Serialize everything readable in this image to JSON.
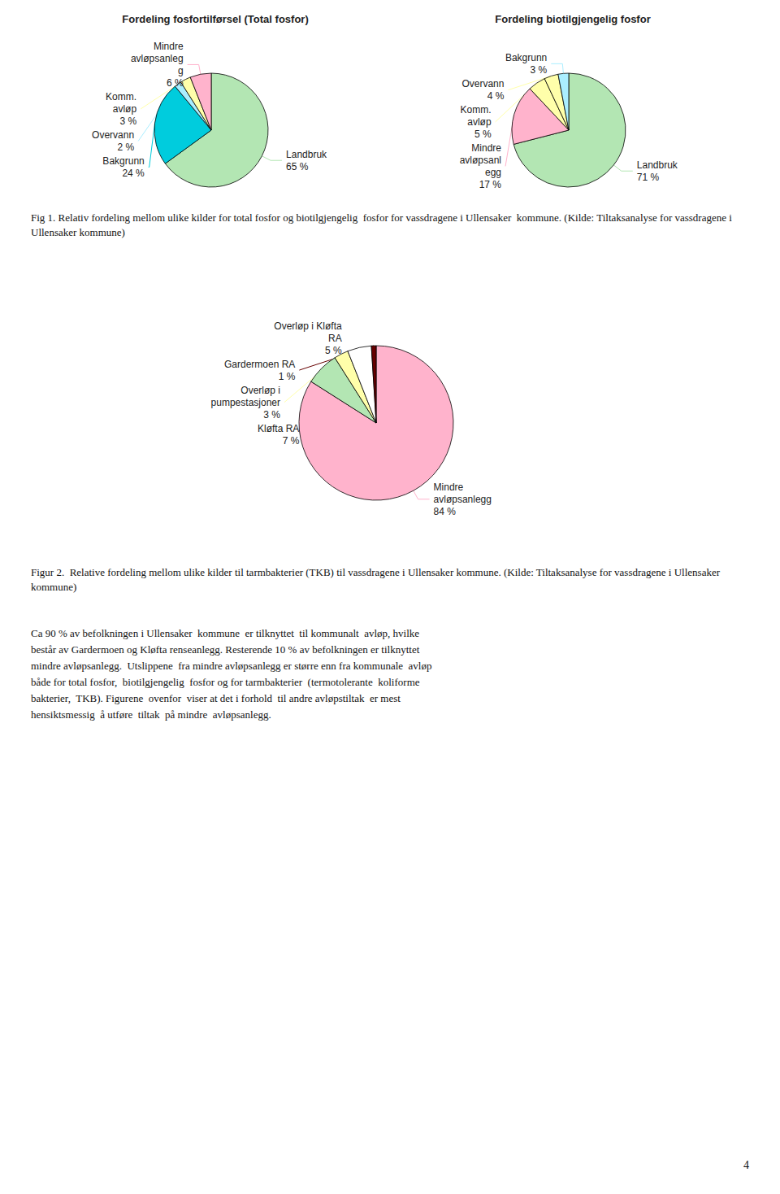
{
  "chart_data": [
    {
      "type": "pie",
      "title": "Fordeling fosfortilførsel (Total fosfor)",
      "categories": [
        "Landbruk",
        "Bakgrunn",
        "Overvann",
        "Komm.\navløp",
        "Mindre\navløpsanleg\ng"
      ],
      "values": [
        65,
        24,
        2,
        3,
        6
      ],
      "value_labels": [
        "65 %",
        "24 %",
        "2 %",
        "3 %",
        "6 %"
      ],
      "colors": [
        "#b3e6b3",
        "#00ccdd",
        "#aaeeff",
        "#ffffaa",
        "#ffb3cc"
      ],
      "data_labels": true
    },
    {
      "type": "pie",
      "title": "Fordeling biotilgjengelig fosfor",
      "categories": [
        "Landbruk",
        "Mindre\navløpsanl\negg",
        "Komm.\navløp",
        "Overvann",
        "Bakgrunn"
      ],
      "values": [
        71,
        17,
        5,
        4,
        3
      ],
      "value_labels": [
        "71 %",
        "17 %",
        "5 %",
        "4 %",
        "3 %"
      ],
      "colors": [
        "#b3e6b3",
        "#ffb3cc",
        "#ffffaa",
        "#ffffaa",
        "#aaeeff"
      ],
      "data_labels": true,
      "annotations": [
        "Fig 1. Relativ fordeling mellom ulike kilder for total fosfor og biotilgjengelig  fosfor for vassdragene i Ullensaker  kommune. (Kilde: Tiltaksanalyse for vassdragene i Ullensaker kommune)"
      ]
    },
    {
      "type": "pie",
      "categories": [
        "Mindre\navløpsanlegg",
        "Kløfta RA",
        "Overløp i\npumpestasjoner",
        "Overløp i Kløfta\nRA",
        "Gardermoen RA"
      ],
      "values": [
        84,
        7,
        3,
        5,
        1
      ],
      "value_labels": [
        "84 %",
        "7 %",
        "3 %",
        "5 %",
        "1 %"
      ],
      "colors": [
        "#ffb3cc",
        "#b3e6b3",
        "#ffffaa",
        "#ffffff",
        "#660000"
      ],
      "data_labels": true,
      "annotations": [
        "Figur 2.  Relative fordeling mellom ulike kilder til tarmbakterier (TKB) til vassdragene i Ullensaker kommune. (Kilde: Tiltaksanalyse for vassdragene i Ullensaker kommune)",
        "Ca 90 % av befolkningen i Ullensaker  kommune  er tilknyttet  til kommunalt  avløp, hvilke\nbestår av Gardermoen og Kløfta renseanlegg. Resterende 10 % av befolkningen er tilknyttet\nmindre avløpsanlegg.  Utslippene  fra mindre avløpsanlegg er større enn fra kommunale  avløp\nbåde for total fosfor,  biotilgjengelig  fosfor og for tarmbakterier  (termotolerante  koliforme\nbakterier,  TKB). Figurene  ovenfor  viser at det i forhold  til andre avløpstiltak  er mest\nhensiktsmessig  å utføre  tiltak  på mindre  avløpsanlegg.",
        "4"
      ]
    }
  ]
}
